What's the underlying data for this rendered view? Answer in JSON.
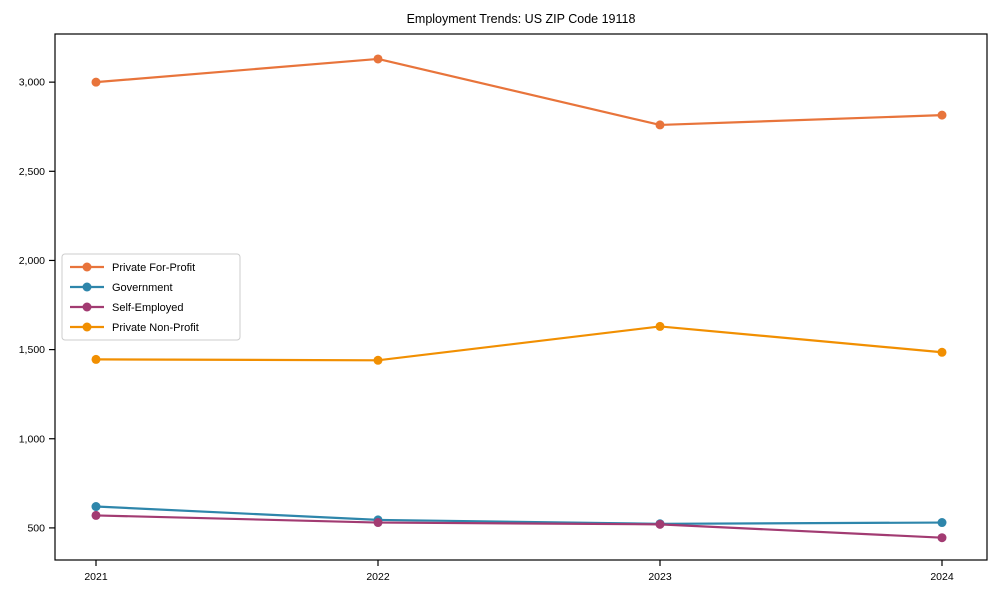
{
  "figure": {
    "background": "#ffffff",
    "axes_edge_color": "#000000"
  },
  "chart_data": {
    "type": "line",
    "title": "Employment Trends: US ZIP Code 19118",
    "xlabel": "",
    "ylabel": "",
    "categories": [
      "2021",
      "2022",
      "2023",
      "2024"
    ],
    "series": [
      {
        "name": "Private For-Profit",
        "color": "#e8743b",
        "marker": "circle",
        "values": [
          3000,
          3130,
          2760,
          2815
        ]
      },
      {
        "name": "Government",
        "color": "#2e86ab",
        "marker": "circle",
        "values": [
          620,
          545,
          523,
          530
        ]
      },
      {
        "name": "Self-Employed",
        "color": "#a23b72",
        "marker": "circle",
        "values": [
          570,
          530,
          520,
          445
        ]
      },
      {
        "name": "Private Non-Profit",
        "color": "#f18f01",
        "marker": "circle",
        "values": [
          1445,
          1440,
          1630,
          1485
        ]
      }
    ],
    "ytick_labels": [
      "500",
      "1,000",
      "1,500",
      "2,000",
      "2,500",
      "3,000"
    ],
    "ytick_values": [
      500,
      1000,
      1500,
      2000,
      2500,
      3000
    ],
    "ylim": [
      320,
      3270
    ],
    "xlim_padding": "categories spaced evenly, points inset from plot edges",
    "grid": "off",
    "legend": {
      "position": "center-left",
      "entries": [
        "Private For-Profit",
        "Government",
        "Self-Employed",
        "Private Non-Profit"
      ]
    }
  }
}
